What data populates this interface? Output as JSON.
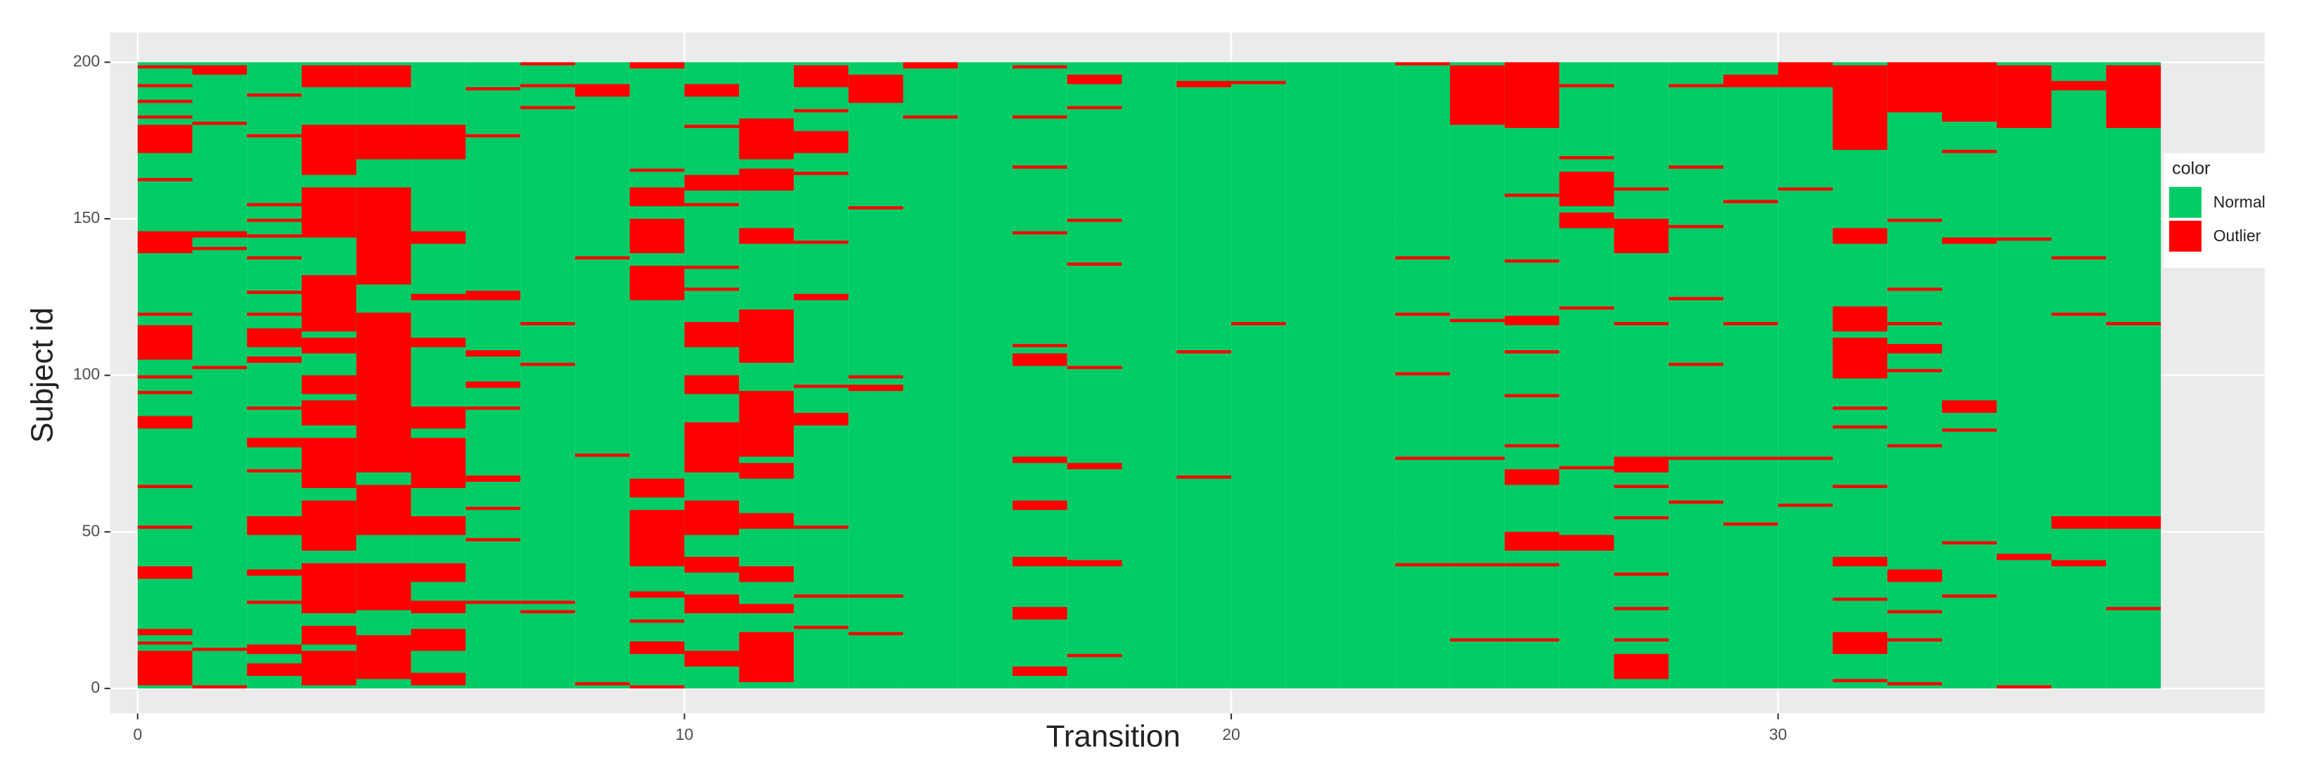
{
  "chart_data": {
    "type": "heatmap",
    "x_label": "Transition",
    "y_label": "Subject id",
    "legend_title": "color",
    "series": [
      {
        "name": "Normal",
        "color": "#00cc66"
      },
      {
        "name": "Outlier",
        "color": "#ff0000"
      }
    ],
    "x": [
      0,
      1,
      2,
      3,
      4,
      5,
      6,
      7,
      8,
      9,
      10,
      11,
      12,
      13,
      14,
      15,
      16,
      17,
      18,
      19,
      20,
      21,
      22,
      23,
      24,
      25,
      26,
      27,
      28,
      29,
      30,
      31,
      32,
      33,
      34,
      35,
      36
    ],
    "rows": [
      1,
      200
    ],
    "xlim": [
      -0.5,
      38.9
    ],
    "ylim": [
      -8,
      209.5
    ],
    "xticks": [
      0,
      10,
      20,
      30
    ],
    "yticks": [
      0,
      50,
      100,
      150,
      200
    ],
    "grid": true,
    "legend": "right",
    "outliers": [
      [
        [
          199,
          199
        ],
        [
          193,
          193
        ],
        [
          188,
          188
        ],
        [
          183,
          183
        ],
        [
          172,
          180
        ],
        [
          163,
          163
        ],
        [
          140,
          146
        ],
        [
          120,
          120
        ],
        [
          106,
          116
        ],
        [
          100,
          100
        ],
        [
          95,
          95
        ],
        [
          84,
          87
        ],
        [
          65,
          65
        ],
        [
          52,
          52
        ],
        [
          36,
          39
        ],
        [
          18,
          19
        ],
        [
          15,
          15
        ],
        [
          2,
          12
        ]
      ],
      [
        [
          197,
          199
        ],
        [
          181,
          181
        ],
        [
          145,
          146
        ],
        [
          141,
          141
        ],
        [
          103,
          103
        ],
        [
          13,
          13
        ],
        [
          1,
          1
        ]
      ],
      [
        [
          190,
          190
        ],
        [
          177,
          177
        ],
        [
          155,
          155
        ],
        [
          150,
          150
        ],
        [
          145,
          145
        ],
        [
          138,
          138
        ],
        [
          127,
          127
        ],
        [
          120,
          120
        ],
        [
          110,
          115
        ],
        [
          105,
          106
        ],
        [
          90,
          90
        ],
        [
          78,
          80
        ],
        [
          70,
          70
        ],
        [
          50,
          55
        ],
        [
          37,
          38
        ],
        [
          28,
          28
        ],
        [
          12,
          14
        ],
        [
          5,
          8
        ]
      ],
      [
        [
          193,
          199
        ],
        [
          165,
          180
        ],
        [
          145,
          160
        ],
        [
          115,
          132
        ],
        [
          108,
          112
        ],
        [
          95,
          100
        ],
        [
          85,
          92
        ],
        [
          65,
          80
        ],
        [
          45,
          60
        ],
        [
          25,
          40
        ],
        [
          15,
          20
        ],
        [
          2,
          12
        ]
      ],
      [
        [
          193,
          199
        ],
        [
          170,
          180
        ],
        [
          130,
          160
        ],
        [
          100,
          120
        ],
        [
          70,
          100
        ],
        [
          50,
          65
        ],
        [
          26,
          40
        ],
        [
          4,
          17
        ]
      ],
      [
        [
          170,
          180
        ],
        [
          143,
          146
        ],
        [
          125,
          126
        ],
        [
          110,
          112
        ],
        [
          84,
          90
        ],
        [
          65,
          80
        ],
        [
          50,
          55
        ],
        [
          35,
          40
        ],
        [
          25,
          28
        ],
        [
          13,
          19
        ],
        [
          2,
          5
        ]
      ],
      [
        [
          192,
          192
        ],
        [
          177,
          177
        ],
        [
          125,
          127
        ],
        [
          107,
          108
        ],
        [
          97,
          98
        ],
        [
          90,
          90
        ],
        [
          67,
          68
        ],
        [
          58,
          58
        ],
        [
          48,
          48
        ],
        [
          28,
          28
        ]
      ],
      [
        [
          200,
          200
        ],
        [
          193,
          193
        ],
        [
          186,
          186
        ],
        [
          117,
          117
        ],
        [
          104,
          104
        ],
        [
          28,
          28
        ],
        [
          25,
          25
        ]
      ],
      [
        [
          190,
          193
        ],
        [
          138,
          138
        ],
        [
          75,
          75
        ],
        [
          2,
          2
        ]
      ],
      [
        [
          199,
          200
        ],
        [
          166,
          166
        ],
        [
          155,
          160
        ],
        [
          140,
          150
        ],
        [
          125,
          135
        ],
        [
          62,
          67
        ],
        [
          40,
          57
        ],
        [
          30,
          31
        ],
        [
          22,
          22
        ],
        [
          12,
          15
        ],
        [
          1,
          1
        ]
      ],
      [
        [
          190,
          193
        ],
        [
          180,
          180
        ],
        [
          160,
          164
        ],
        [
          155,
          155
        ],
        [
          135,
          135
        ],
        [
          128,
          128
        ],
        [
          110,
          117
        ],
        [
          95,
          100
        ],
        [
          70,
          85
        ],
        [
          50,
          60
        ],
        [
          38,
          42
        ],
        [
          25,
          30
        ],
        [
          8,
          12
        ]
      ],
      [
        [
          170,
          182
        ],
        [
          160,
          166
        ],
        [
          143,
          147
        ],
        [
          117,
          121
        ],
        [
          105,
          117
        ],
        [
          75,
          95
        ],
        [
          68,
          72
        ],
        [
          52,
          56
        ],
        [
          35,
          39
        ],
        [
          25,
          27
        ],
        [
          3,
          18
        ]
      ],
      [
        [
          193,
          199
        ],
        [
          185,
          185
        ],
        [
          172,
          178
        ],
        [
          165,
          165
        ],
        [
          143,
          143
        ],
        [
          125,
          126
        ],
        [
          97,
          97
        ],
        [
          85,
          88
        ],
        [
          52,
          52
        ],
        [
          30,
          30
        ],
        [
          20,
          20
        ]
      ],
      [
        [
          188,
          196
        ],
        [
          154,
          154
        ],
        [
          100,
          100
        ],
        [
          96,
          97
        ],
        [
          30,
          30
        ],
        [
          18,
          18
        ]
      ],
      [
        [
          199,
          200
        ],
        [
          183,
          183
        ]
      ],
      [],
      [
        [
          199,
          199
        ],
        [
          183,
          183
        ],
        [
          167,
          167
        ],
        [
          146,
          146
        ],
        [
          110,
          110
        ],
        [
          104,
          107
        ],
        [
          73,
          74
        ],
        [
          58,
          60
        ],
        [
          40,
          42
        ],
        [
          23,
          26
        ],
        [
          5,
          7
        ]
      ],
      [
        [
          194,
          196
        ],
        [
          186,
          186
        ],
        [
          150,
          150
        ],
        [
          136,
          136
        ],
        [
          103,
          103
        ],
        [
          71,
          72
        ],
        [
          40,
          41
        ],
        [
          11,
          11
        ]
      ],
      [],
      [
        [
          193,
          194
        ],
        [
          108,
          108
        ],
        [
          68,
          68
        ]
      ],
      [
        [
          194,
          194
        ],
        [
          117,
          117
        ]
      ],
      [],
      [],
      [
        [
          200,
          200
        ],
        [
          138,
          138
        ],
        [
          120,
          120
        ],
        [
          101,
          101
        ],
        [
          74,
          74
        ],
        [
          40,
          40
        ]
      ],
      [
        [
          181,
          199
        ],
        [
          118,
          118
        ],
        [
          74,
          74
        ],
        [
          40,
          40
        ],
        [
          16,
          16
        ]
      ],
      [
        [
          180,
          200
        ],
        [
          158,
          158
        ],
        [
          137,
          137
        ],
        [
          117,
          119
        ],
        [
          108,
          108
        ],
        [
          94,
          94
        ],
        [
          78,
          78
        ],
        [
          66,
          70
        ],
        [
          45,
          50
        ],
        [
          40,
          40
        ],
        [
          16,
          16
        ]
      ],
      [
        [
          193,
          193
        ],
        [
          170,
          170
        ],
        [
          155,
          165
        ],
        [
          148,
          152
        ],
        [
          122,
          122
        ],
        [
          71,
          71
        ],
        [
          45,
          49
        ]
      ],
      [
        [
          160,
          160
        ],
        [
          140,
          150
        ],
        [
          117,
          117
        ],
        [
          70,
          74
        ],
        [
          65,
          65
        ],
        [
          55,
          55
        ],
        [
          37,
          37
        ],
        [
          26,
          26
        ],
        [
          16,
          16
        ],
        [
          4,
          11
        ]
      ],
      [
        [
          193,
          193
        ],
        [
          167,
          167
        ],
        [
          148,
          148
        ],
        [
          125,
          125
        ],
        [
          104,
          104
        ],
        [
          74,
          74
        ],
        [
          60,
          60
        ]
      ],
      [
        [
          193,
          196
        ],
        [
          156,
          156
        ],
        [
          117,
          117
        ],
        [
          74,
          74
        ],
        [
          53,
          53
        ]
      ],
      [
        [
          193,
          200
        ],
        [
          160,
          160
        ],
        [
          74,
          74
        ],
        [
          59,
          59
        ]
      ],
      [
        [
          173,
          199
        ],
        [
          143,
          147
        ],
        [
          115,
          122
        ],
        [
          100,
          112
        ],
        [
          90,
          90
        ],
        [
          84,
          84
        ],
        [
          65,
          65
        ],
        [
          40,
          42
        ],
        [
          29,
          29
        ],
        [
          12,
          18
        ],
        [
          3,
          3
        ]
      ],
      [
        [
          185,
          200
        ],
        [
          150,
          150
        ],
        [
          128,
          128
        ],
        [
          117,
          117
        ],
        [
          108,
          110
        ],
        [
          102,
          102
        ],
        [
          78,
          78
        ],
        [
          35,
          38
        ],
        [
          25,
          25
        ],
        [
          16,
          16
        ],
        [
          2,
          2
        ]
      ],
      [
        [
          182,
          200
        ],
        [
          172,
          172
        ],
        [
          143,
          144
        ],
        [
          89,
          92
        ],
        [
          83,
          83
        ],
        [
          47,
          47
        ],
        [
          30,
          30
        ]
      ],
      [
        [
          180,
          199
        ],
        [
          144,
          144
        ],
        [
          42,
          43
        ],
        [
          1,
          1
        ]
      ],
      [
        [
          192,
          194
        ],
        [
          138,
          138
        ],
        [
          120,
          120
        ],
        [
          52,
          55
        ],
        [
          40,
          41
        ]
      ],
      [
        [
          180,
          199
        ],
        [
          117,
          117
        ],
        [
          52,
          55
        ],
        [
          26,
          26
        ]
      ]
    ]
  }
}
